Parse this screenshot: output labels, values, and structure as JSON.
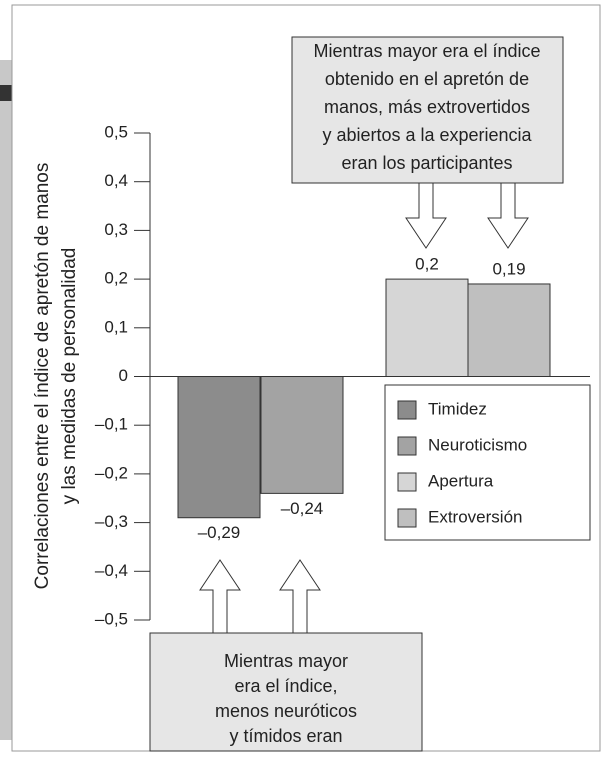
{
  "chart_data": {
    "type": "bar",
    "y_label": [
      "Correlaciones entre el índice de apretón de manos",
      "y las medidas de personalidad"
    ],
    "series": [
      {
        "name": "Timidez",
        "color": "#8c8c8c",
        "values": [
          -0.29
        ],
        "value_labels": [
          "–0,29"
        ]
      },
      {
        "name": "Neuroticismo",
        "color": "#a3a3a3",
        "values": [
          -0.24
        ],
        "value_labels": [
          "–0,24"
        ]
      },
      {
        "name": "Apertura",
        "color": "#d6d6d6",
        "values": [
          0.2
        ],
        "value_labels": [
          "0,2"
        ]
      },
      {
        "name": "Extroversión",
        "color": "#bfbfbf",
        "values": [
          0.19
        ],
        "value_labels": [
          "0,19"
        ]
      }
    ],
    "ylim": [
      -0.5,
      0.5
    ],
    "yticks": [
      {
        "value": 0.5,
        "label": "0,5"
      },
      {
        "value": 0.4,
        "label": "0,4"
      },
      {
        "value": 0.3,
        "label": "0,3"
      },
      {
        "value": 0.2,
        "label": "0,2"
      },
      {
        "value": 0.1,
        "label": "0,1"
      },
      0,
      {
        "value": -0.1,
        "label": "–0,1"
      },
      {
        "value": -0.2,
        "label": "–0,2"
      },
      {
        "value": -0.3,
        "label": "–0,3"
      },
      {
        "value": -0.4,
        "label": "–0,4"
      },
      {
        "value": -0.5,
        "label": "–0,5"
      }
    ],
    "annotations": [
      {
        "lines": [
          "Mientras mayor era el índice",
          "obtenido en el apretón de",
          "manos, más extrovertidos",
          "y abiertos a la experiencia",
          "eran los participantes"
        ]
      },
      {
        "lines": [
          "Mientras mayor",
          "era el índice,",
          "menos neuróticos",
          "y tímidos eran"
        ]
      }
    ]
  }
}
